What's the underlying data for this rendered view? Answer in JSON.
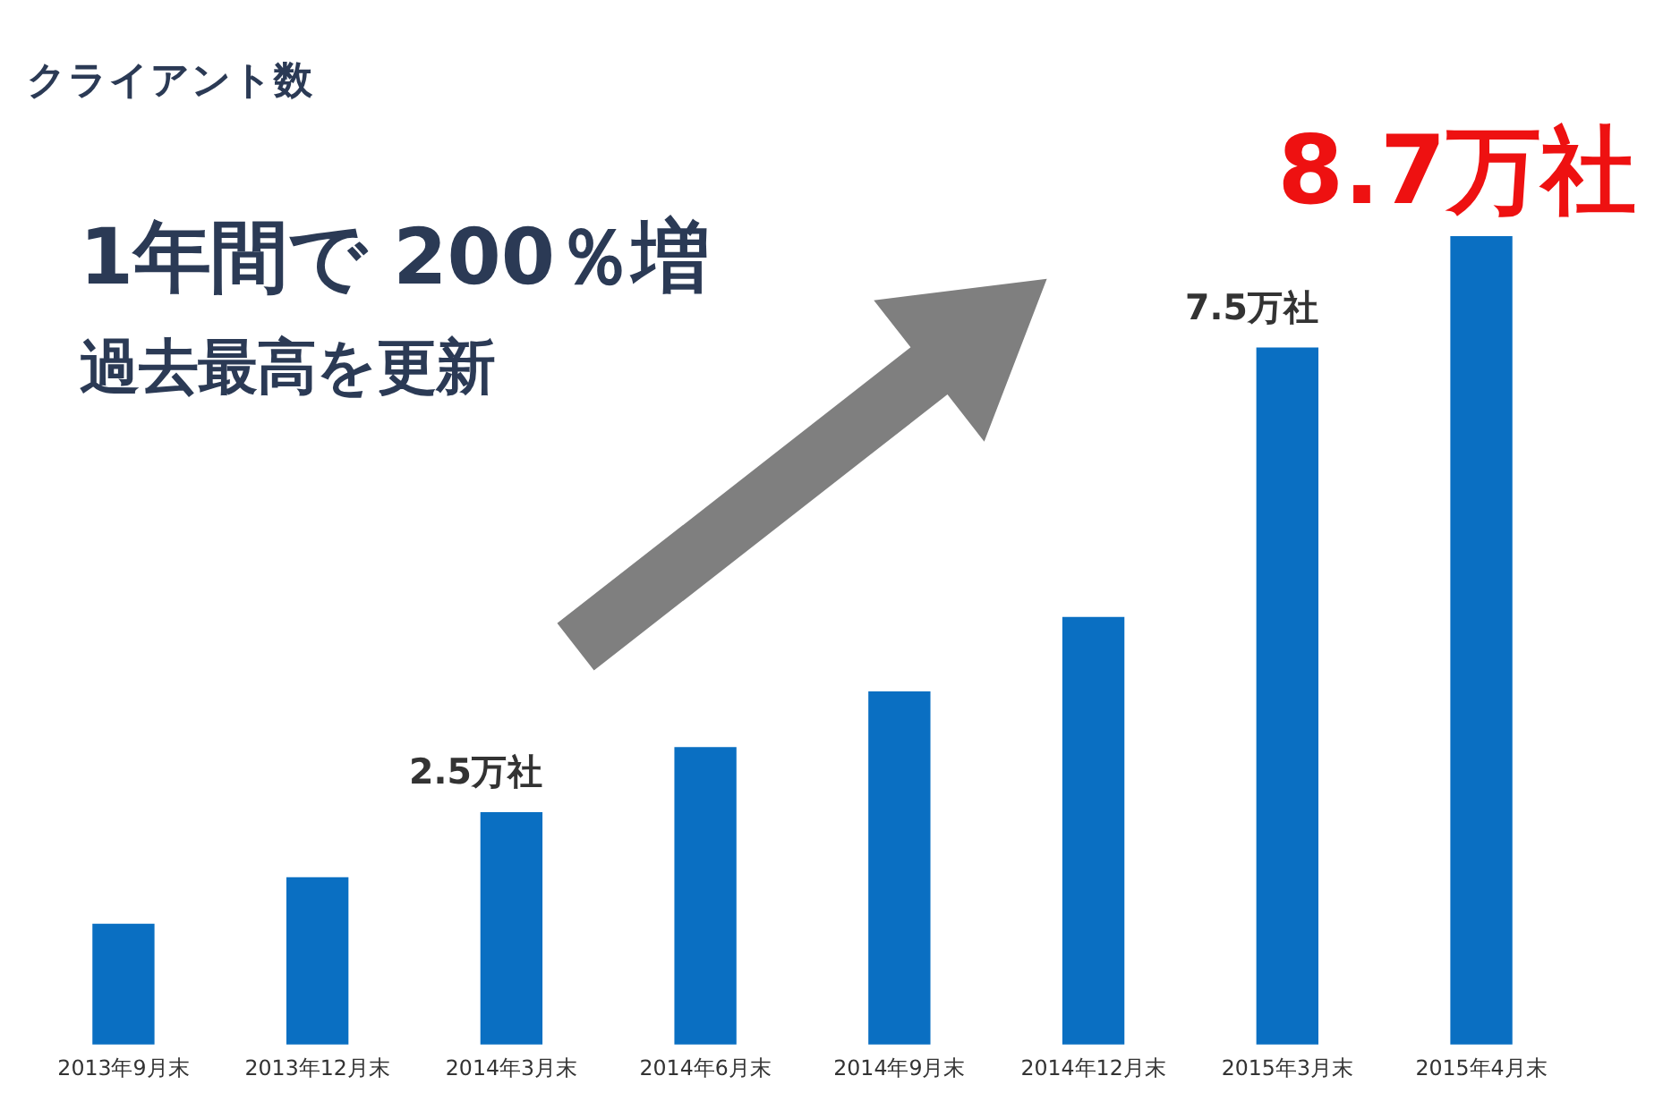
{
  "chart_data": {
    "type": "bar",
    "title": "クライアント数",
    "annotations": [
      "1年間で 200％増",
      "過去最高を更新"
    ],
    "categories": [
      "2013年9月末",
      "2013年12月末",
      "2014年3月末",
      "2014年6月末",
      "2014年9月末",
      "2014年12月末",
      "2015年3月末",
      "2015年4月末"
    ],
    "values": [
      1.3,
      1.8,
      2.5,
      3.2,
      3.8,
      4.6,
      7.5,
      8.7
    ],
    "value_labels": [
      null,
      null,
      "2.5万社",
      null,
      null,
      null,
      "7.5万社",
      "8.7万社"
    ],
    "color": "#0a6fc2"
  }
}
